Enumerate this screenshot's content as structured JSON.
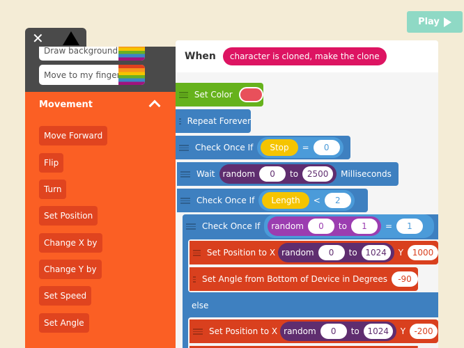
{
  "play": {
    "label": "Play"
  },
  "sidebar": {
    "palette_items": [
      "Draw background",
      "Move to my finger"
    ],
    "section": "Movement",
    "buttons": [
      "Move Forward",
      "Flip",
      "Turn",
      "Set Position",
      "Change X by",
      "Change Y by",
      "Set Speed",
      "Set Angle"
    ]
  },
  "script": {
    "when_label": "When",
    "event": "character is cloned, make the clone",
    "set_color": "Set Color",
    "repeat": "Repeat Forever",
    "check1": {
      "label": "Check Once If",
      "var": "Stop",
      "op": "=",
      "value": "0"
    },
    "wait": {
      "label": "Wait",
      "random": "random",
      "from": "0",
      "to": "to",
      "to_value": "2500",
      "unit": "Milliseconds"
    },
    "check2": {
      "label": "Check Once If",
      "var": "Length",
      "op": "<",
      "value": "2"
    },
    "check3": {
      "label": "Check Once If",
      "random": "random",
      "from": "0",
      "to": "to",
      "to_value": "1",
      "op": "=",
      "value": "1"
    },
    "setpos1": {
      "label": "Set Position  to X",
      "random": "random",
      "from": "0",
      "to": "to",
      "to_value": "1024",
      "y": "Y",
      "y_value": "1000"
    },
    "setangle": {
      "label": "Set Angle  from Bottom of Device in Degrees",
      "value": "-90"
    },
    "else": "else",
    "setpos2": {
      "label": "Set Position  to X",
      "random": "random",
      "from": "0",
      "to": "to",
      "to_value": "1024",
      "y": "Y",
      "y_value": "-200"
    }
  },
  "colors": {
    "play": "#8fd9c5",
    "orange": "#fb5f24",
    "blue": "#3e80c0",
    "red": "#d9401e",
    "green": "#66b21c",
    "event": "#dd1462",
    "set_color_value": "#e8505b"
  }
}
